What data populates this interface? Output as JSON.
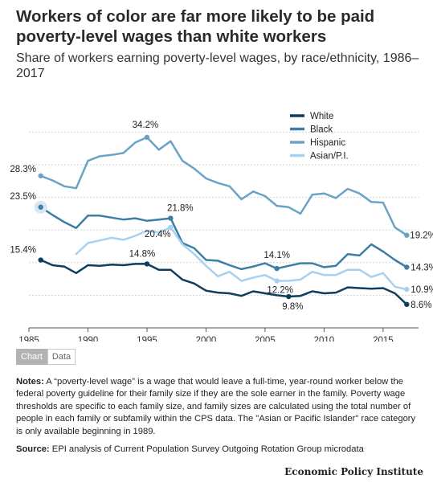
{
  "header": {
    "title": "Workers of color are far more likely to be paid poverty-level wages than white workers",
    "subtitle": "Share of workers earning poverty-level wages, by race/ethnicity, 1986–2017"
  },
  "tabs": {
    "chart": "Chart",
    "data": "Data"
  },
  "notes": {
    "label": "Notes:",
    "text": " A “poverty-level wage” is a wage that would leave a full-time, year-round worker below the federal poverty guideline for their family size if they are the sole earner in the family. Poverty wage thresholds are specific to each family size, and family sizes are calculated using the total number of people in each family or subfamily within the CPS data. The \"Asian or Pacific Islander\" race category is only available beginning in 1989."
  },
  "source": {
    "label": "Source:",
    "text": " EPI analysis of Current Population Survey Outgoing Rotation Group microdata"
  },
  "brand": "Economic Policy Institute",
  "chart_data": {
    "type": "line",
    "x": [
      1986,
      1987,
      1988,
      1989,
      1990,
      1991,
      1992,
      1993,
      1994,
      1995,
      1996,
      1997,
      1998,
      1999,
      2000,
      2001,
      2002,
      2003,
      2004,
      2005,
      2006,
      2007,
      2008,
      2009,
      2010,
      2011,
      2012,
      2013,
      2014,
      2015,
      2016,
      2017
    ],
    "xlim": [
      1985,
      2018
    ],
    "ylim": [
      5,
      38
    ],
    "xticks": [
      1985,
      1990,
      1995,
      2000,
      2005,
      2010,
      2015
    ],
    "gridlines": [
      10,
      15,
      20,
      25,
      30,
      35
    ],
    "grid": true,
    "legend": "top-right",
    "series": [
      {
        "name": "White",
        "color": "#0f3d5c",
        "values": [
          15.4,
          14.6,
          14.4,
          13.4,
          14.6,
          14.5,
          14.7,
          14.6,
          14.8,
          14.8,
          13.9,
          13.9,
          12.4,
          11.8,
          10.7,
          10.4,
          10.3,
          9.9,
          10.6,
          10.3,
          10.0,
          9.8,
          9.9,
          10.6,
          10.3,
          10.4,
          11.2,
          11.1,
          11.0,
          11.1,
          10.3,
          8.6
        ]
      },
      {
        "name": "Black",
        "color": "#3d7ea6",
        "values": [
          23.5,
          22.3,
          21.2,
          20.3,
          22.2,
          22.2,
          21.9,
          21.6,
          21.8,
          21.4,
          21.6,
          21.8,
          18.0,
          17.2,
          15.4,
          15.3,
          14.6,
          14.0,
          14.4,
          14.9,
          14.1,
          14.5,
          14.9,
          14.9,
          14.3,
          14.5,
          16.3,
          16.1,
          17.8,
          16.7,
          15.4,
          14.3
        ]
      },
      {
        "name": "Hispanic",
        "color": "#6ba3c7",
        "values": [
          28.3,
          27.6,
          26.7,
          26.4,
          30.6,
          31.3,
          31.5,
          31.8,
          33.4,
          34.2,
          32.3,
          33.6,
          30.6,
          29.4,
          27.9,
          27.2,
          26.7,
          24.7,
          25.9,
          25.2,
          23.7,
          23.5,
          22.5,
          25.4,
          25.6,
          24.9,
          26.3,
          25.6,
          24.3,
          24.2,
          20.4,
          19.2
        ]
      },
      {
        "name": "Asian/P.I.",
        "color": "#a8d1ee",
        "values": [
          null,
          null,
          null,
          16.3,
          18.0,
          18.4,
          18.8,
          18.5,
          19.1,
          19.9,
          19.6,
          20.4,
          17.8,
          16.3,
          14.5,
          12.9,
          13.6,
          12.2,
          12.7,
          13.1,
          12.2,
          12.2,
          12.4,
          13.6,
          13.1,
          13.1,
          13.9,
          13.9,
          12.8,
          13.4,
          11.3,
          10.9
        ]
      }
    ],
    "annotations": [
      {
        "text": "34.2%",
        "series": "Hispanic",
        "x": 1995,
        "y": 34.2
      },
      {
        "text": "28.3%",
        "series": "Hispanic",
        "x": 1986,
        "y": 28.3
      },
      {
        "text": "23.5%",
        "series": "Black",
        "x": 1986,
        "y": 23.5
      },
      {
        "text": "21.8%",
        "series": "Black",
        "x": 1997,
        "y": 21.8
      },
      {
        "text": "20.4%",
        "series": "Asian/P.I.",
        "x": 1997,
        "y": 20.4
      },
      {
        "text": "15.4%",
        "series": "White",
        "x": 1986,
        "y": 15.4
      },
      {
        "text": "14.8%",
        "series": "White",
        "x": 1995,
        "y": 14.8
      },
      {
        "text": "14.1%",
        "series": "Black",
        "x": 2006,
        "y": 14.1
      },
      {
        "text": "12.2%",
        "series": "Asian/P.I.",
        "x": 2006,
        "y": 12.2
      },
      {
        "text": "9.8%",
        "series": "White",
        "x": 2007,
        "y": 9.8
      },
      {
        "text": "19.2%",
        "series": "Hispanic",
        "x": 2017,
        "y": 19.2
      },
      {
        "text": "14.3%",
        "series": "Black",
        "x": 2017,
        "y": 14.3
      },
      {
        "text": "10.9%",
        "series": "Asian/P.I.",
        "x": 2017,
        "y": 10.9
      },
      {
        "text": "8.6%",
        "series": "White",
        "x": 2017,
        "y": 8.6
      }
    ]
  }
}
